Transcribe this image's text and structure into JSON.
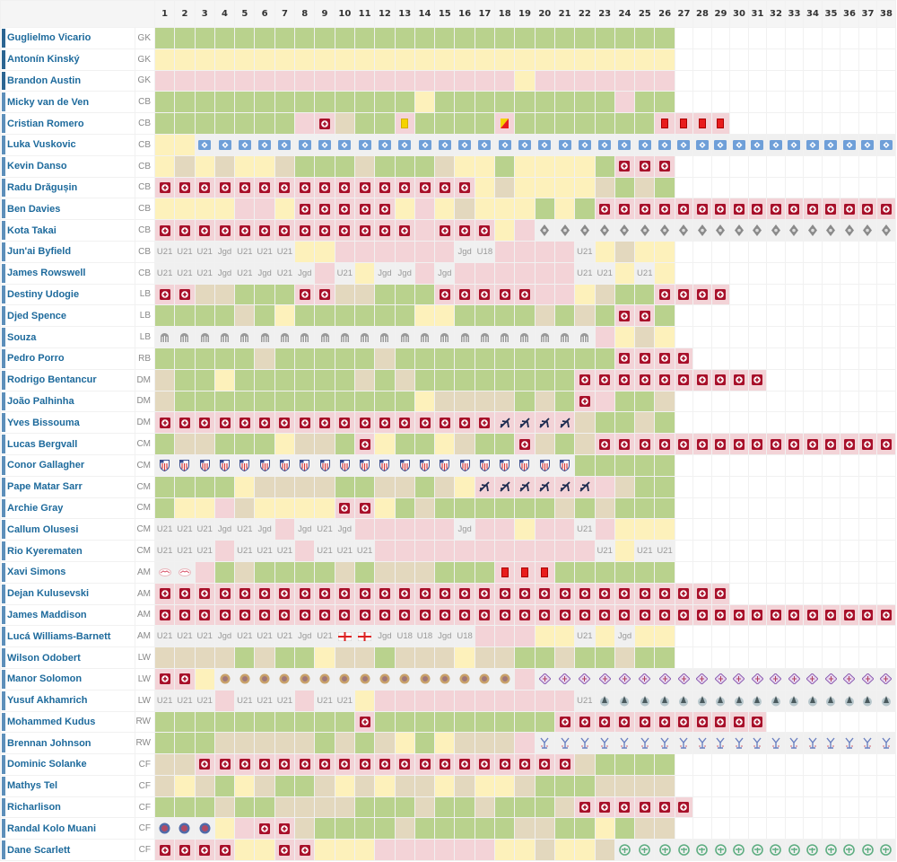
{
  "columns": [
    "1",
    "2",
    "3",
    "4",
    "5",
    "6",
    "7",
    "8",
    "9",
    "10",
    "11",
    "12",
    "13",
    "14",
    "15",
    "16",
    "17",
    "18",
    "19",
    "20",
    "21",
    "22",
    "23",
    "24",
    "25",
    "26",
    "27",
    "28",
    "29",
    "30",
    "31",
    "32",
    "33",
    "34",
    "35",
    "36",
    "37",
    "38"
  ],
  "colors": {
    "played": "#b9d28d",
    "bench": "#fdf1bb",
    "absent": "#f3d3d7",
    "sub": "#e3d8be",
    "loan": "#f0f0f0",
    "name": "#1d6a9c",
    "injury": "#a8102a"
  },
  "players": [
    {
      "name": "Guglielmo Vicario",
      "pos": "GK",
      "cells": [
        "G*26",
        "W*12"
      ]
    },
    {
      "name": "Antonín Kinský",
      "pos": "GK",
      "cells": [
        "Y*26",
        "W*12"
      ]
    },
    {
      "name": "Brandon Austin",
      "pos": "GK",
      "cells": [
        "P*18",
        "Y",
        "P*7",
        "W*12"
      ]
    },
    {
      "name": "Micky van de Ven",
      "pos": "CB",
      "cells": [
        "G*13",
        "Y",
        "G*9",
        "P",
        "G*2",
        "W*12"
      ]
    },
    {
      "name": "Cristian Romero",
      "pos": "CB",
      "cells": [
        "G*7",
        "P",
        "P:inj",
        "T",
        "G*2",
        "P:yc",
        "G*4",
        "P:yr",
        "G*7",
        "P:red*4",
        "W*9"
      ]
    },
    {
      "name": "Luka Vuskovic",
      "pos": "CB",
      "cells": [
        "Y*2",
        "L:hsv*36"
      ]
    },
    {
      "name": "Kevin Danso",
      "pos": "CB",
      "cells": [
        "Y",
        "T",
        "Y",
        "T",
        "Y*2",
        "T",
        "G*3",
        "T",
        "G*3",
        "T",
        "Y*2",
        "G",
        "Y*4",
        "G",
        "P:inj*3",
        "W*12"
      ]
    },
    {
      "name": "Radu Drăgușin",
      "pos": "CB",
      "cells": [
        "P:inj*16",
        "Y",
        "T",
        "Y*4",
        "T",
        "G",
        "T",
        "G",
        "W*12"
      ]
    },
    {
      "name": "Ben Davies",
      "pos": "CB",
      "cells": [
        "Y*4",
        "P*2",
        "Y",
        "P:inj*5",
        "Y",
        "P",
        "Y",
        "T",
        "Y*3",
        "G",
        "Y",
        "G",
        "P:inj*16"
      ]
    },
    {
      "name": "Kota Takai",
      "pos": "CB",
      "cells": [
        "P:inj*13",
        "P",
        "P:inj*3",
        "Y",
        "P",
        "L:gla*19"
      ]
    },
    {
      "name": "Jun'ai Byfield",
      "pos": "CB",
      "cells": [
        "L:U21*3",
        "L:Jgd",
        "L:U21*3",
        "Y*2",
        "P*6",
        "L:Jgd",
        "L:U18",
        "P*4",
        "L:U21",
        "Y",
        "T",
        "Y*2",
        "W*12"
      ]
    },
    {
      "name": "James Rowswell",
      "pos": "CB",
      "cells": [
        "L:U21*3",
        "L:Jgd",
        "L:U21",
        "L:Jgd",
        "L:U21",
        "L:Jgd",
        "P",
        "L:U21",
        "Y",
        "L:Jgd*2",
        "P",
        "L:Jgd",
        "P*6",
        "L:U21*2",
        "Y",
        "L:U21",
        "Y",
        "W*12"
      ]
    },
    {
      "name": "Destiny Udogie",
      "pos": "LB",
      "cells": [
        "P:inj*2",
        "T*2",
        "G*3",
        "P:inj*2",
        "T*2",
        "G*3",
        "P:inj*5",
        "P*2",
        "Y",
        "T",
        "G*2",
        "P:inj*4",
        "W*9"
      ]
    },
    {
      "name": "Djed Spence",
      "pos": "LB",
      "cells": [
        "G*4",
        "T",
        "G",
        "Y",
        "G*6",
        "Y*2",
        "G*4",
        "T",
        "G",
        "T",
        "G",
        "P:inj*2",
        "G",
        "W*12"
      ]
    },
    {
      "name": "Souza",
      "pos": "LB",
      "cells": [
        "L:san*22",
        "P",
        "Y",
        "T",
        "Y",
        "W*12"
      ]
    },
    {
      "name": "Pedro Porro",
      "pos": "RB",
      "cells": [
        "G*5",
        "T",
        "G*5",
        "T",
        "G*11",
        "P:inj*4",
        "W*11"
      ]
    },
    {
      "name": "Rodrigo Bentancur",
      "pos": "DM",
      "cells": [
        "T",
        "G*2",
        "Y",
        "G*6",
        "T",
        "G",
        "T",
        "G*8",
        "P:inj*10",
        "W*7"
      ]
    },
    {
      "name": "João Palhinha",
      "pos": "DM",
      "cells": [
        "T",
        "G*12",
        "Y",
        "T*4",
        "G",
        "T",
        "G",
        "P:inj",
        "P",
        "G*2",
        "T",
        "W*12"
      ]
    },
    {
      "name": "Yves Bissouma",
      "pos": "DM",
      "cells": [
        "P:inj*17",
        "P:plane*4",
        "T",
        "G*2",
        "T",
        "G",
        "W*12"
      ]
    },
    {
      "name": "Lucas Bergvall",
      "pos": "CM",
      "cells": [
        "G",
        "T*2",
        "G*3",
        "Y",
        "T*2",
        "G",
        "P:inj",
        "Y",
        "G*2",
        "Y",
        "T",
        "G*2",
        "P:inj",
        "T",
        "G",
        "T",
        "P:inj*16"
      ]
    },
    {
      "name": "Conor Gallagher",
      "pos": "CM",
      "cells": [
        "L:atm*21",
        "G*5",
        "W*12"
      ]
    },
    {
      "name": "Pape Matar Sarr",
      "pos": "CM",
      "cells": [
        "G*4",
        "Y",
        "T*4",
        "G*2",
        "T*2",
        "G",
        "T",
        "Y",
        "P:plane*6",
        "P",
        "T",
        "G*2",
        "W*12"
      ]
    },
    {
      "name": "Archie Gray",
      "pos": "CM",
      "cells": [
        "G",
        "Y*2",
        "P",
        "T",
        "Y*4",
        "P:inj*2",
        "Y",
        "G",
        "T",
        "G*6",
        "T",
        "G",
        "T",
        "G*3",
        "W*12"
      ]
    },
    {
      "name": "Callum Olusesi",
      "pos": "CM",
      "cells": [
        "L:U21*3",
        "L:Jgd",
        "L:U21",
        "L:Jgd",
        "P",
        "L:Jgd",
        "L:U21",
        "L:Jgd",
        "P*5",
        "L:Jgd",
        "P*2",
        "Y",
        "P*2",
        "L:U21",
        "P",
        "Y*3",
        "W*12"
      ]
    },
    {
      "name": "Rio Kyerematen",
      "pos": "CM",
      "cells": [
        "L:U21*3",
        "P",
        "L:U21*3",
        "P",
        "L:U21*3",
        "P*11",
        "L:U21",
        "Y",
        "L:U21*2",
        "W*12"
      ]
    },
    {
      "name": "Xavi Simons",
      "pos": "AM",
      "cells": [
        "L:rbl*2",
        "P",
        "G",
        "T",
        "G*4",
        "T",
        "G",
        "T*3",
        "G*3",
        "P:red*3",
        "G*6",
        "W*12"
      ]
    },
    {
      "name": "Dejan Kulusevski",
      "pos": "AM",
      "cells": [
        "P:inj*29",
        "W*9"
      ]
    },
    {
      "name": "James Maddison",
      "pos": "AM",
      "cells": [
        "P:inj*38"
      ]
    },
    {
      "name": "Lucá Williams-Barnett",
      "pos": "AM",
      "cells": [
        "L:U21*3",
        "L:Jgd",
        "L:U21*3",
        "L:Jgd",
        "L:U21",
        "L:eng*2",
        "L:Jgd",
        "L:U18*2",
        "L:Jgd",
        "L:U18",
        "P*3",
        "Y*2",
        "L:U21",
        "Y",
        "L:Jgd",
        "Y*2",
        "W*12"
      ]
    },
    {
      "name": "Wilson Odobert",
      "pos": "LW",
      "cells": [
        "T*4",
        "G",
        "T",
        "G*2",
        "Y",
        "T*2",
        "G",
        "T*3",
        "Y",
        "T*2",
        "G*2",
        "T",
        "G*2",
        "T",
        "G*2",
        "W*12"
      ]
    },
    {
      "name": "Manor Solomon",
      "pos": "LW",
      "cells": [
        "P:inj*2",
        "Y",
        "L:vil*15",
        "P",
        "L:fio*19"
      ]
    },
    {
      "name": "Yusuf Akhamrich",
      "pos": "LW",
      "cells": [
        "L:U21*3",
        "P",
        "L:U21*3",
        "P",
        "L:U21*2",
        "Y",
        "P*10",
        "L:U21",
        "L:bird*16"
      ]
    },
    {
      "name": "Mohammed Kudus",
      "pos": "RW",
      "cells": [
        "G*10",
        "P:inj",
        "G*9",
        "P:inj*11",
        "W*7"
      ]
    },
    {
      "name": "Brennan Johnson",
      "pos": "RW",
      "cells": [
        "G*3",
        "T*5",
        "G",
        "T",
        "G",
        "T",
        "Y",
        "G",
        "Y",
        "T*3",
        "P",
        "L:cpl*19"
      ]
    },
    {
      "name": "Dominic Solanke",
      "pos": "CF",
      "cells": [
        "T*2",
        "P:inj*19",
        "T",
        "G*4",
        "W*12"
      ]
    },
    {
      "name": "Mathys Tel",
      "pos": "CF",
      "cells": [
        "T",
        "Y",
        "T",
        "G",
        "Y",
        "T",
        "G*2",
        "T",
        "Y",
        "T",
        "Y",
        "T*2",
        "Y",
        "T",
        "Y*2",
        "T",
        "G*3",
        "T*4",
        "W*12"
      ]
    },
    {
      "name": "Richarlison",
      "pos": "CF",
      "cells": [
        "G*3",
        "T",
        "G*2",
        "T*4",
        "G*3",
        "T",
        "G*2",
        "T",
        "G*3",
        "T",
        "P:inj*6",
        "W*11"
      ]
    },
    {
      "name": "Randal Kolo Muani",
      "pos": "CF",
      "cells": [
        "L:psg*3",
        "Y",
        "P",
        "P:inj*2",
        "T",
        "G*4",
        "T",
        "G*5",
        "T*2",
        "G*2",
        "Y",
        "G",
        "T*2",
        "W*12"
      ]
    },
    {
      "name": "Dane Scarlett",
      "pos": "CF",
      "cells": [
        "P:inj*4",
        "Y*2",
        "P:inj*2",
        "Y*3",
        "P*6",
        "Y*2",
        "T",
        "Y*2",
        "T",
        "L:hib*15"
      ]
    }
  ]
}
